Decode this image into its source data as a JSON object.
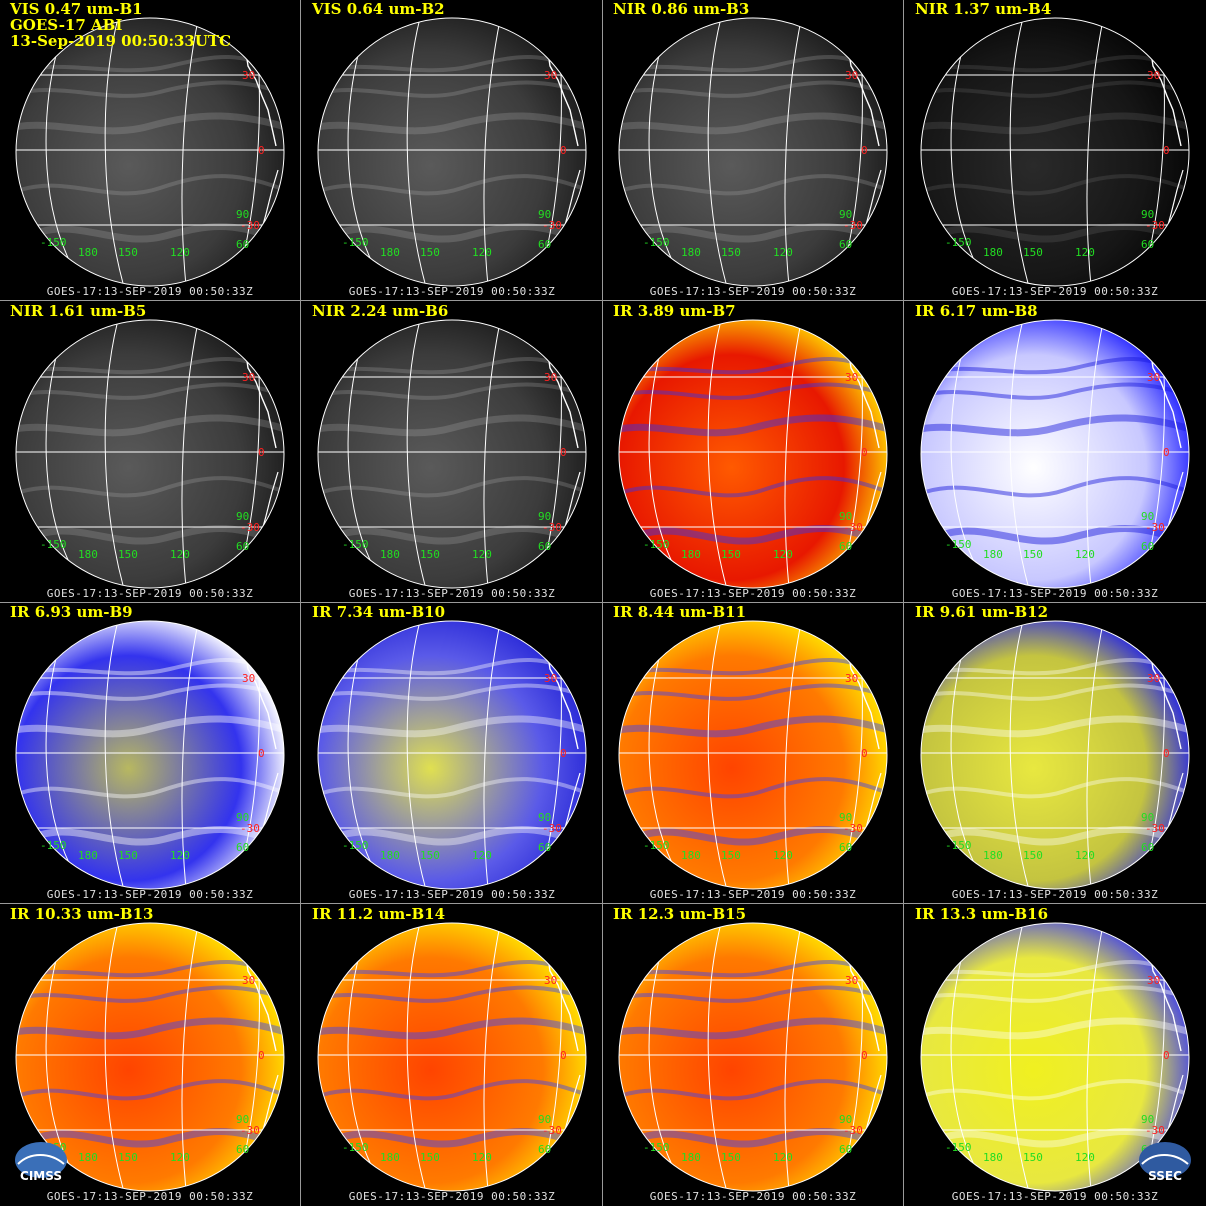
{
  "sheet": {
    "footer": "GOES-17:13-SEP-2019 00:50:33Z",
    "colors": {
      "title": "#ffff00",
      "lat_label": "#ff2020",
      "lon_label": "#22dd22",
      "grid": "#ffffff"
    }
  },
  "header_lines": [
    "GOES-17 ABI",
    "13-Sep-2019 00:50:33UTC"
  ],
  "lat_labels": [
    "30",
    "0",
    "-30"
  ],
  "lon_labels": [
    "-150",
    "180",
    "150",
    "120",
    "60",
    "90"
  ],
  "panels": [
    {
      "title": "VIS 0.47 um-B1",
      "palette": "gray"
    },
    {
      "title": "VIS 0.64 um-B2",
      "palette": "gray"
    },
    {
      "title": "NIR 0.86 um-B3",
      "palette": "gray"
    },
    {
      "title": "NIR 1.37 um-B4",
      "palette": "dark"
    },
    {
      "title": "NIR 1.61 um-B5",
      "palette": "gray"
    },
    {
      "title": "NIR 2.24 um-B6",
      "palette": "gray"
    },
    {
      "title": "IR 3.89 um-B7",
      "palette": "red"
    },
    {
      "title": "IR 6.17 um-B8",
      "palette": "wv-light"
    },
    {
      "title": "IR 6.93 um-B9",
      "palette": "wv"
    },
    {
      "title": "IR 7.34 um-B10",
      "palette": "wv-yellow"
    },
    {
      "title": "IR 8.44 um-B11",
      "palette": "ir"
    },
    {
      "title": "IR 9.61 um-B12",
      "palette": "ozone"
    },
    {
      "title": "IR 10.33 um-B13",
      "palette": "ir"
    },
    {
      "title": "IR 11.2 um-B14",
      "palette": "ir"
    },
    {
      "title": "IR 12.3 um-B15",
      "palette": "ir"
    },
    {
      "title": "IR 13.3 um-B16",
      "palette": "co2"
    }
  ],
  "logos": {
    "left": "CIMSS",
    "right": "SSEC"
  }
}
